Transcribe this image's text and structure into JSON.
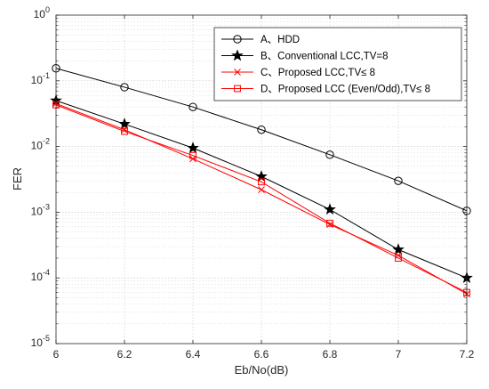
{
  "chart_data": {
    "type": "line",
    "xlabel": "Eb/No(dB)",
    "ylabel": "FER",
    "yscale": "log",
    "xlim": [
      6,
      7.2
    ],
    "ylim": [
      1e-05,
      1
    ],
    "grid": true,
    "legend_position": "top-right",
    "x_ticks": [
      6,
      6.2,
      6.4,
      6.6,
      6.8,
      7,
      7.2
    ],
    "x_tick_labels": [
      "6",
      "6.2",
      "6.4",
      "6.6",
      "6.8",
      "7",
      "7.2"
    ],
    "y_ticks": [
      1e-05,
      0.0001,
      0.001,
      0.01,
      0.1,
      1
    ],
    "y_tick_bases": [
      "10",
      "10",
      "10",
      "10",
      "10",
      "10"
    ],
    "y_tick_exponents": [
      "-5",
      "-4",
      "-3",
      "-2",
      "-1",
      "0"
    ],
    "x": [
      6,
      6.2,
      6.4,
      6.6,
      6.8,
      7,
      7.2
    ],
    "series": [
      {
        "name": "A、HDD",
        "color": "#000000",
        "marker": "circle",
        "values": [
          0.155,
          0.08,
          0.04,
          0.018,
          0.0075,
          0.003,
          0.00105
        ]
      },
      {
        "name": "B、Conventional LCC,TV=8",
        "color": "#000000",
        "marker": "star",
        "values": [
          0.05,
          0.022,
          0.0095,
          0.0035,
          0.0011,
          0.00027,
          0.0001
        ]
      },
      {
        "name": "C、Proposed LCC,TV≤ 8",
        "color": "#ff0000",
        "marker": "x",
        "values": [
          0.045,
          0.018,
          0.0065,
          0.0022,
          0.00065,
          0.00022,
          5.7e-05
        ]
      },
      {
        "name": "D、Proposed LCC (Even/Odd),TV≤ 8",
        "color": "#ff0000",
        "marker": "square",
        "values": [
          0.043,
          0.017,
          0.0073,
          0.0029,
          0.00068,
          0.0002,
          6e-05
        ]
      }
    ]
  }
}
